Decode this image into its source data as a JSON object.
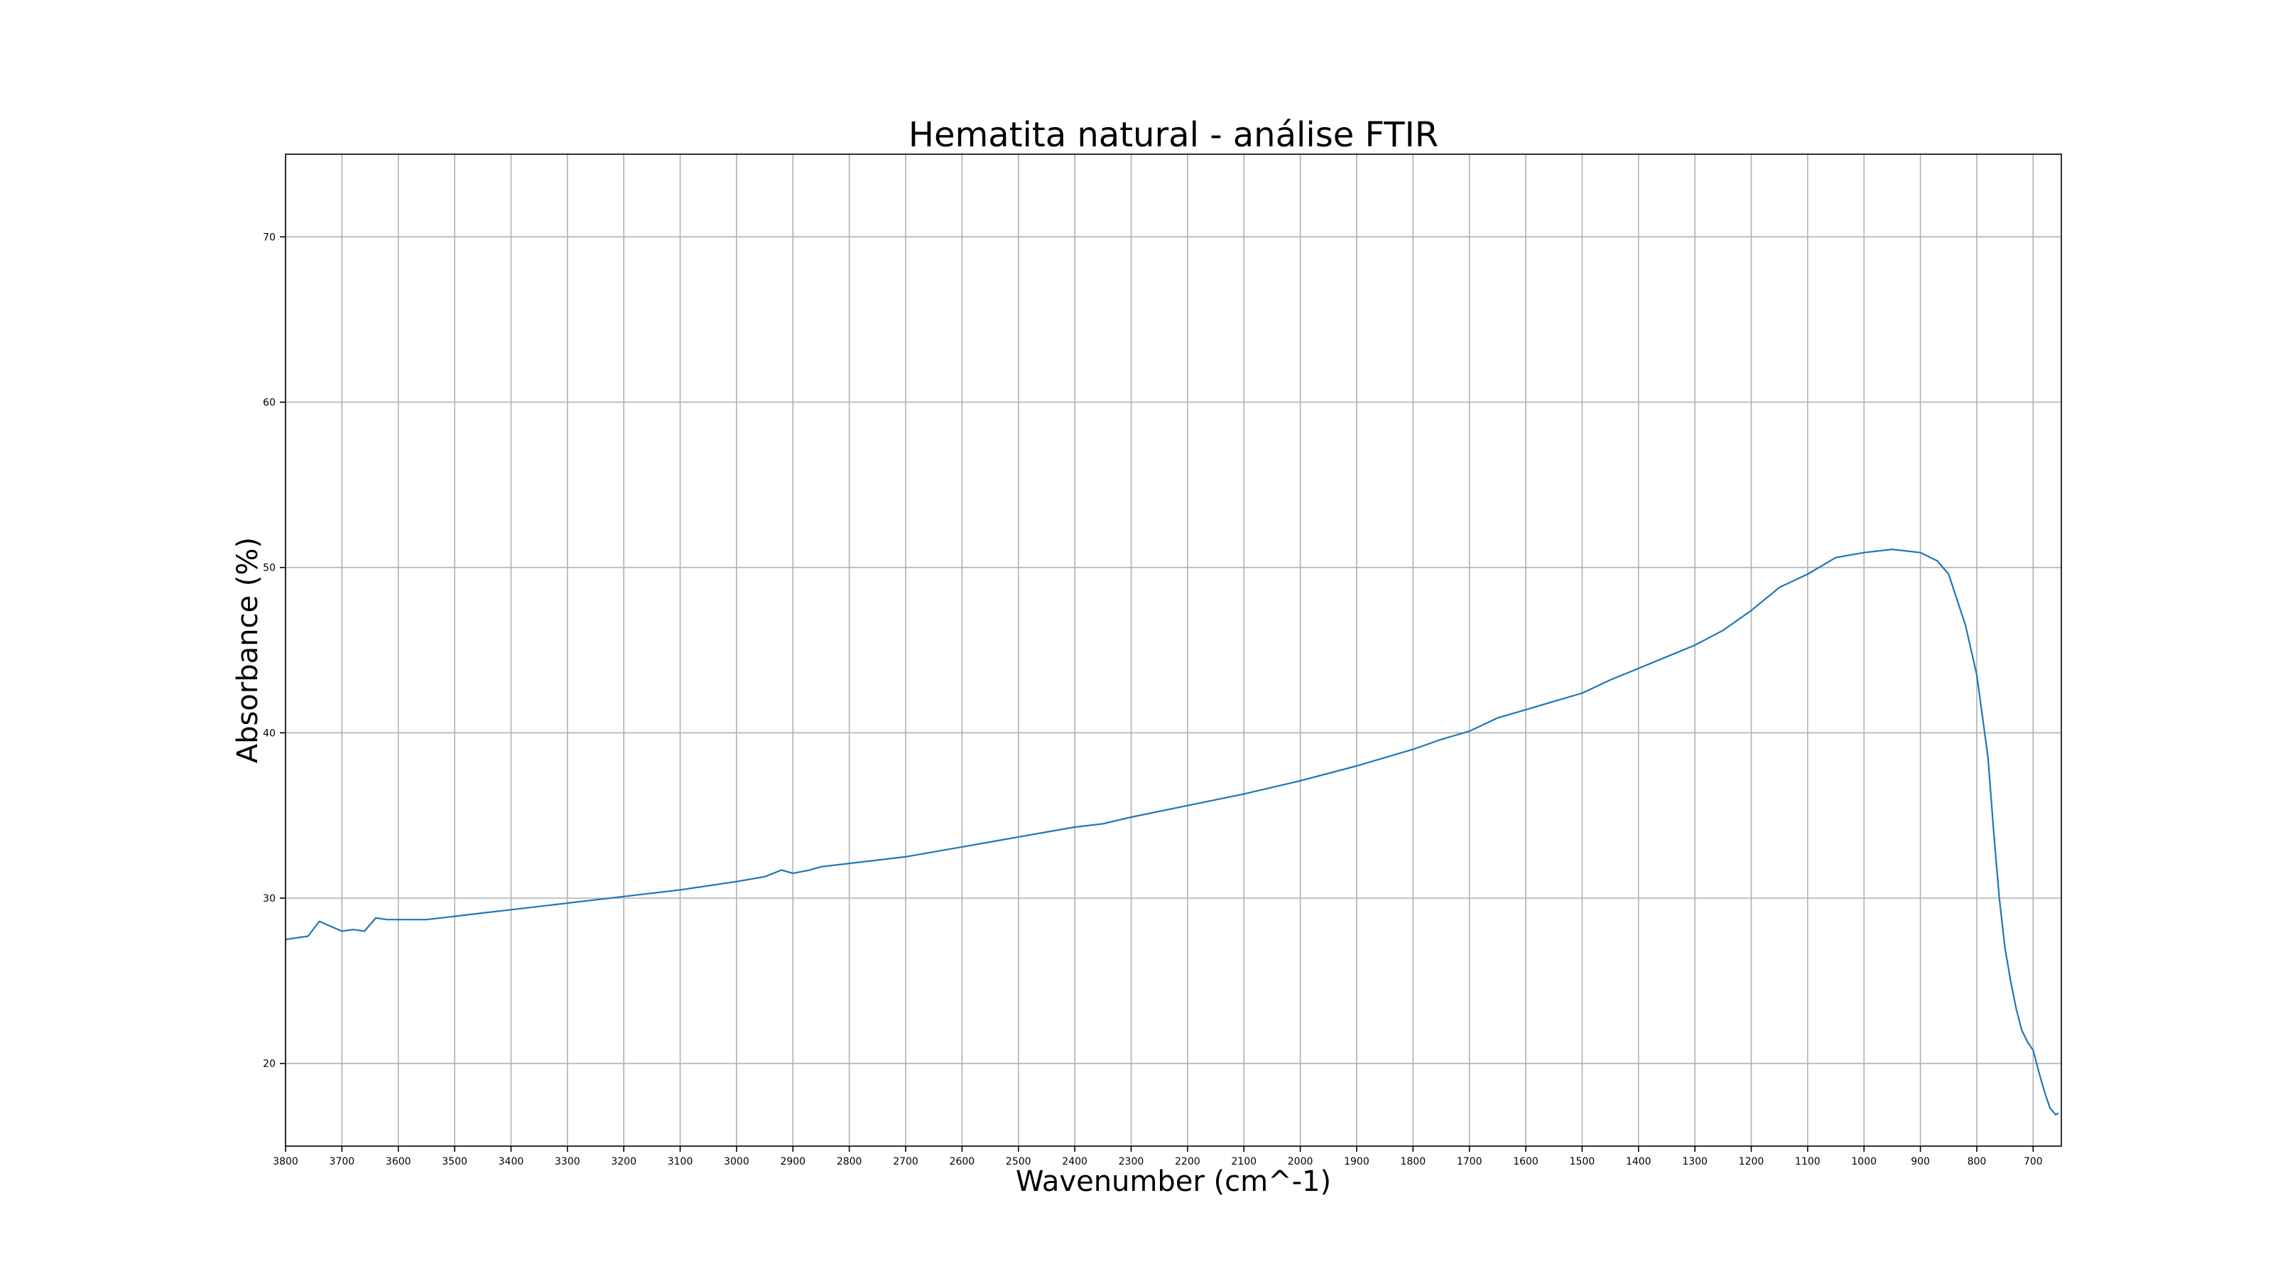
{
  "chart_data": {
    "type": "line",
    "title": "Hematita natural - análise FTIR",
    "xlabel": "Wavenumber (cm^-1)",
    "ylabel": "Absorbance (%)",
    "xlim": [
      3800,
      650
    ],
    "ylim": [
      15,
      75
    ],
    "x_reversed": true,
    "grid": true,
    "x_ticks": [
      3800,
      3700,
      3600,
      3500,
      3400,
      3300,
      3200,
      3100,
      3000,
      2900,
      2800,
      2700,
      2600,
      2500,
      2400,
      2300,
      2200,
      2100,
      2000,
      1900,
      1800,
      1700,
      1600,
      1500,
      1400,
      1300,
      1200,
      1100,
      1000,
      900,
      800,
      700
    ],
    "y_ticks": [
      20,
      30,
      40,
      50,
      60,
      70
    ],
    "line_color": "#1f77b4",
    "series": [
      {
        "x": [
          3800,
          3760,
          3740,
          3720,
          3700,
          3680,
          3660,
          3640,
          3620,
          3600,
          3550,
          3500,
          3450,
          3400,
          3300,
          3200,
          3100,
          3000,
          2950,
          2920,
          2900,
          2870,
          2850,
          2800,
          2700,
          2600,
          2500,
          2400,
          2350,
          2300,
          2200,
          2100,
          2000,
          1900,
          1800,
          1750,
          1700,
          1650,
          1600,
          1550,
          1500,
          1450,
          1400,
          1350,
          1300,
          1250,
          1200,
          1150,
          1100,
          1050,
          1000,
          950,
          900,
          870,
          850,
          820,
          800,
          780,
          770,
          760,
          750,
          740,
          730,
          720,
          710,
          700,
          690,
          680,
          670,
          660,
          655
        ],
        "values": [
          27.5,
          27.7,
          28.6,
          28.3,
          28.0,
          28.1,
          28.0,
          28.8,
          28.7,
          28.7,
          28.7,
          28.9,
          29.1,
          29.3,
          29.7,
          30.1,
          30.5,
          31.0,
          31.3,
          31.7,
          31.5,
          31.7,
          31.9,
          32.1,
          32.5,
          33.1,
          33.7,
          34.3,
          34.5,
          34.9,
          35.6,
          36.3,
          37.1,
          38.0,
          39.0,
          39.6,
          40.1,
          40.9,
          41.4,
          41.9,
          42.4,
          43.2,
          43.9,
          44.6,
          45.3,
          46.2,
          47.4,
          48.8,
          49.6,
          50.6,
          50.9,
          51.1,
          50.9,
          50.4,
          49.6,
          46.5,
          43.5,
          38.5,
          34.0,
          30.0,
          27.0,
          25.0,
          23.3,
          22.0,
          21.3,
          20.8,
          19.5,
          18.3,
          17.3,
          16.9,
          17.0
        ]
      }
    ]
  }
}
